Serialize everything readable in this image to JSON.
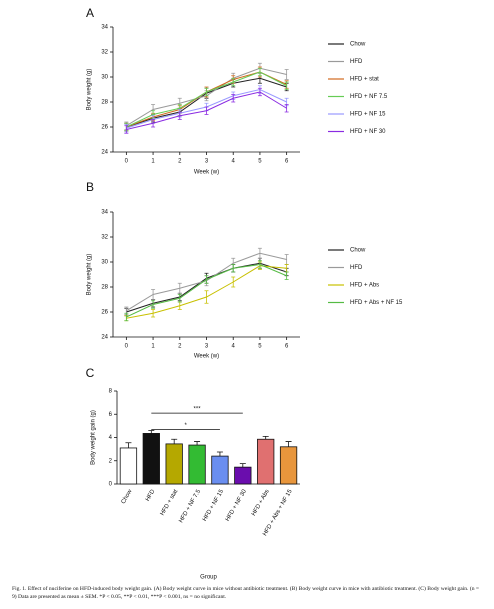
{
  "chart_data": [
    {
      "type": "line",
      "panel": "A",
      "xlabel": "Week (w)",
      "ylabel": "Body weight (g)",
      "x": [
        0,
        1,
        2,
        3,
        4,
        5,
        6
      ],
      "xlim": [
        -0.5,
        6.5
      ],
      "xticks": [
        0,
        1,
        2,
        3,
        4,
        5,
        6
      ],
      "ylim": [
        24,
        34
      ],
      "yticks": [
        24,
        26,
        28,
        30,
        32,
        34
      ],
      "series": [
        {
          "name": "Chow",
          "color": "#222222",
          "values": [
            26.0,
            26.7,
            27.2,
            28.7,
            29.5,
            29.9,
            29.2
          ],
          "errors": [
            0.3,
            0.3,
            0.3,
            0.4,
            0.3,
            0.4,
            0.3
          ]
        },
        {
          "name": "HFD",
          "color": "#9a9a9a",
          "values": [
            26.1,
            27.4,
            27.9,
            28.5,
            29.9,
            30.7,
            30.2
          ],
          "errors": [
            0.3,
            0.4,
            0.4,
            0.4,
            0.4,
            0.4,
            0.4
          ]
        },
        {
          "name": "HFD + stat",
          "color": "#d2691e",
          "values": [
            26.0,
            26.8,
            27.4,
            28.8,
            29.8,
            30.4,
            29.4
          ],
          "errors": [
            0.3,
            0.3,
            0.3,
            0.4,
            0.3,
            0.4,
            0.3
          ]
        },
        {
          "name": "HFD + NF 7.5",
          "color": "#66cc55",
          "values": [
            26.0,
            27.0,
            27.5,
            28.8,
            29.6,
            30.4,
            29.3
          ],
          "errors": [
            0.3,
            0.3,
            0.3,
            0.3,
            0.3,
            0.3,
            0.3
          ]
        },
        {
          "name": "HFD + NF 15",
          "color": "#9999ff",
          "values": [
            25.9,
            26.6,
            27.1,
            27.6,
            28.5,
            29.0,
            28.0
          ],
          "errors": [
            0.3,
            0.3,
            0.3,
            0.3,
            0.3,
            0.3,
            0.3
          ]
        },
        {
          "name": "HFD + NF 30",
          "color": "#8a2be2",
          "values": [
            25.8,
            26.3,
            26.9,
            27.3,
            28.3,
            28.8,
            27.5
          ],
          "errors": [
            0.3,
            0.3,
            0.3,
            0.3,
            0.3,
            0.3,
            0.3
          ]
        }
      ]
    },
    {
      "type": "line",
      "panel": "B",
      "xlabel": "Week (w)",
      "ylabel": "Body weight (g)",
      "x": [
        0,
        1,
        2,
        3,
        4,
        5,
        6
      ],
      "xlim": [
        -0.5,
        6.5
      ],
      "xticks": [
        0,
        1,
        2,
        3,
        4,
        5,
        6
      ],
      "ylim": [
        24,
        34
      ],
      "yticks": [
        24,
        26,
        28,
        30,
        32,
        34
      ],
      "series": [
        {
          "name": "Chow",
          "color": "#222222",
          "values": [
            26.0,
            26.7,
            27.2,
            28.7,
            29.5,
            29.9,
            29.2
          ],
          "errors": [
            0.3,
            0.3,
            0.3,
            0.4,
            0.3,
            0.4,
            0.3
          ]
        },
        {
          "name": "HFD",
          "color": "#9a9a9a",
          "values": [
            26.1,
            27.4,
            27.9,
            28.5,
            29.9,
            30.7,
            30.2
          ],
          "errors": [
            0.3,
            0.4,
            0.4,
            0.4,
            0.4,
            0.4,
            0.4
          ]
        },
        {
          "name": "HFD + Abs",
          "color": "#c8c000",
          "values": [
            25.5,
            25.9,
            26.5,
            27.2,
            28.4,
            29.7,
            29.5
          ],
          "errors": [
            0.2,
            0.3,
            0.3,
            0.5,
            0.4,
            0.3,
            0.3
          ]
        },
        {
          "name": "HFD + Abs + NF 15",
          "color": "#55bb44",
          "values": [
            25.6,
            26.6,
            27.1,
            28.6,
            29.5,
            29.8,
            28.9
          ],
          "errors": [
            0.3,
            0.3,
            0.3,
            0.3,
            0.3,
            0.3,
            0.3
          ]
        }
      ]
    },
    {
      "type": "bar",
      "panel": "C",
      "xlabel": "Group",
      "ylabel": "Body weight gain (g)",
      "categories": [
        "Chow",
        "HFD",
        "HFD + stat",
        "HFD + NF 7.5",
        "HFD + NF 15",
        "HFD + NF 30",
        "HFD + Abs",
        "HFD + Abs + NF 15"
      ],
      "values": [
        3.1,
        4.35,
        3.45,
        3.35,
        2.4,
        1.45,
        3.85,
        3.2
      ],
      "errors": [
        0.45,
        0.25,
        0.4,
        0.3,
        0.35,
        0.3,
        0.25,
        0.45
      ],
      "colors": [
        "#ffffff",
        "#111111",
        "#b5a800",
        "#33bb33",
        "#6a8ef0",
        "#6a0dad",
        "#e07070",
        "#e8963c"
      ],
      "ylim": [
        0,
        8
      ],
      "yticks": [
        0,
        2,
        4,
        6,
        8
      ],
      "annotations": [
        {
          "label": "***",
          "from": "HFD",
          "to": "HFD + NF 30",
          "y": 6.1
        },
        {
          "label": "*",
          "from": "HFD",
          "to": "HFD + NF 15",
          "y": 4.7
        }
      ]
    }
  ],
  "caption": "Fig. 1. Effect of nuciferine on HFD-induced body weight gain. (A) Body weight curve in mice without antibiotic treatment. (B) Body weight curve in mice with antibiotic treatment. (C) Body weight gain. (n = 9) Data are presented as mean ± SEM. *P < 0.05, **P < 0.01, ***P < 0.001, ns = no significant."
}
